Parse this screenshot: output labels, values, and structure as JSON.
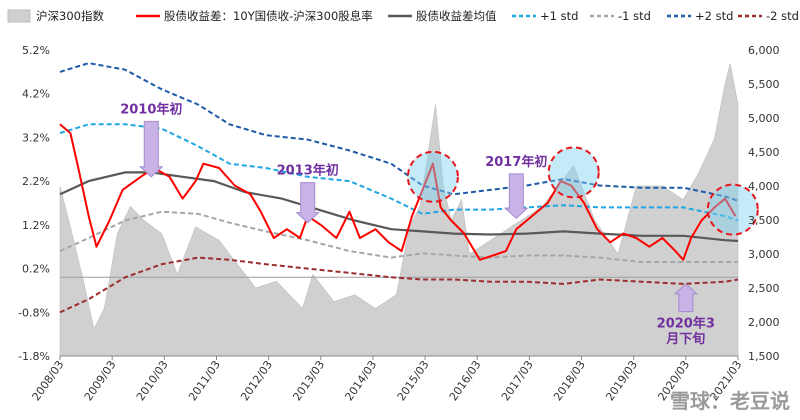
{
  "chart_data": {
    "type": "line",
    "title": "",
    "legend": [
      {
        "key": "index",
        "label": "沪深300指数",
        "color": "#d0d0d0"
      },
      {
        "key": "spread",
        "label": "股债收益差：10Y国债收-沪深300股息率",
        "color": "#ff0000"
      },
      {
        "key": "mean",
        "label": "股债收益差均值",
        "color": "#595959"
      },
      {
        "key": "p1",
        "label": "+1 std",
        "color": "#1ea7e1"
      },
      {
        "key": "m1",
        "label": "-1 std",
        "color": "#a6a6a6"
      },
      {
        "key": "p2",
        "label": "+2 std",
        "color": "#1f5aa8"
      },
      {
        "key": "m2",
        "label": "-2 std",
        "color": "#9b2d2d"
      }
    ],
    "left_axis": {
      "min": -1.8,
      "max": 5.2,
      "ticks": [
        "5.2%",
        "4.2%",
        "3.2%",
        "2.2%",
        "1.2%",
        "0.2%",
        "-0.8%",
        "-1.8%"
      ]
    },
    "right_axis": {
      "min": 1500,
      "max": 6000,
      "ticks": [
        "6,000",
        "5,500",
        "5,000",
        "4,500",
        "4,000",
        "3,500",
        "3,000",
        "2,500",
        "2,000",
        "1,500"
      ]
    },
    "x_ticks": [
      "2008/03",
      "2009/03",
      "2010/03",
      "2011/03",
      "2012/03",
      "2013/03",
      "2014/03",
      "2015/03",
      "2016/03",
      "2017/03",
      "2018/03",
      "2019/03",
      "2020/03",
      "2021/03"
    ],
    "x_range": [
      2008.25,
      2021.25
    ],
    "index_series": {
      "x": [
        2008.25,
        2008.45,
        2008.7,
        2008.9,
        2009.1,
        2009.35,
        2009.6,
        2009.85,
        2010.2,
        2010.5,
        2010.85,
        2011.3,
        2011.7,
        2012.0,
        2012.4,
        2012.9,
        2013.1,
        2013.5,
        2013.9,
        2014.3,
        2014.7,
        2014.95,
        2015.15,
        2015.45,
        2015.6,
        2015.75,
        2015.95,
        2016.1,
        2016.5,
        2017.0,
        2017.5,
        2017.9,
        2018.1,
        2018.5,
        2018.95,
        2019.3,
        2019.8,
        2020.2,
        2020.5,
        2020.8,
        2021.0,
        2021.1,
        2021.25
      ],
      "values": [
        4000,
        3400,
        2600,
        1900,
        2200,
        3300,
        3700,
        3500,
        3300,
        2700,
        3400,
        3200,
        2800,
        2500,
        2600,
        2200,
        2700,
        2300,
        2400,
        2200,
        2400,
        3400,
        3700,
        5200,
        4000,
        3500,
        3800,
        3000,
        3200,
        3450,
        3700,
        4100,
        4300,
        3500,
        3000,
        4000,
        4000,
        3800,
        4200,
        4700,
        5500,
        5800,
        5200
      ]
    },
    "spread_series": {
      "x": [
        2008.25,
        2008.45,
        2008.6,
        2008.8,
        2008.95,
        2009.2,
        2009.45,
        2009.8,
        2010.05,
        2010.35,
        2010.6,
        2010.85,
        2011.0,
        2011.3,
        2011.6,
        2011.9,
        2012.1,
        2012.35,
        2012.6,
        2012.85,
        2013.0,
        2013.25,
        2013.55,
        2013.8,
        2014.0,
        2014.3,
        2014.55,
        2014.8,
        2015.0,
        2015.2,
        2015.4,
        2015.55,
        2015.75,
        2016.0,
        2016.3,
        2016.55,
        2016.8,
        2017.0,
        2017.3,
        2017.6,
        2017.85,
        2018.05,
        2018.3,
        2018.55,
        2018.8,
        2019.05,
        2019.3,
        2019.55,
        2019.8,
        2020.05,
        2020.2,
        2020.35,
        2020.55,
        2020.8,
        2021.0,
        2021.2
      ],
      "values": [
        3.5,
        3.3,
        2.5,
        1.4,
        0.7,
        1.3,
        2.0,
        2.3,
        2.5,
        2.3,
        1.8,
        2.2,
        2.6,
        2.5,
        2.1,
        1.9,
        1.5,
        0.9,
        1.1,
        0.9,
        1.4,
        1.2,
        0.9,
        1.5,
        0.9,
        1.1,
        0.8,
        0.6,
        1.4,
        2.0,
        2.6,
        1.6,
        1.3,
        1.0,
        0.4,
        0.5,
        0.6,
        1.1,
        1.4,
        1.7,
        2.2,
        2.1,
        1.7,
        1.1,
        0.8,
        1.0,
        0.9,
        0.7,
        0.9,
        0.6,
        0.4,
        0.9,
        1.3,
        1.6,
        1.8,
        1.4
      ]
    },
    "mean_series": {
      "x": [
        2008.25,
        2008.8,
        2009.5,
        2010.0,
        2010.6,
        2011.2,
        2011.8,
        2012.5,
        2013.2,
        2013.9,
        2014.6,
        2015.2,
        2015.8,
        2016.5,
        2017.2,
        2017.9,
        2018.6,
        2019.4,
        2020.2,
        2021.0,
        2021.25
      ],
      "values": [
        1.9,
        2.2,
        2.4,
        2.4,
        2.3,
        2.2,
        1.95,
        1.8,
        1.55,
        1.3,
        1.1,
        1.05,
        1.0,
        0.98,
        1.0,
        1.05,
        1.0,
        0.95,
        0.95,
        0.85,
        0.83
      ]
    },
    "p1_series": {
      "x": [
        2008.25,
        2008.8,
        2009.5,
        2010.2,
        2010.9,
        2011.5,
        2012.2,
        2013.0,
        2013.8,
        2014.6,
        2015.2,
        2015.8,
        2016.5,
        2017.2,
        2017.9,
        2018.6,
        2019.4,
        2020.2,
        2021.0,
        2021.25
      ],
      "values": [
        3.3,
        3.5,
        3.5,
        3.4,
        3.0,
        2.6,
        2.5,
        2.3,
        2.2,
        1.8,
        1.45,
        1.55,
        1.55,
        1.6,
        1.65,
        1.6,
        1.6,
        1.6,
        1.4,
        1.3
      ]
    },
    "m1_series": {
      "x": [
        2008.25,
        2008.8,
        2009.5,
        2010.2,
        2010.9,
        2011.5,
        2012.2,
        2013.0,
        2013.8,
        2014.6,
        2015.2,
        2015.8,
        2016.5,
        2017.2,
        2017.9,
        2018.6,
        2019.4,
        2020.2,
        2021.0,
        2021.25
      ],
      "values": [
        0.6,
        0.9,
        1.3,
        1.5,
        1.45,
        1.25,
        1.05,
        0.85,
        0.6,
        0.45,
        0.55,
        0.5,
        0.45,
        0.5,
        0.5,
        0.45,
        0.35,
        0.35,
        0.35,
        0.35
      ]
    },
    "p2_series": {
      "x": [
        2008.25,
        2008.8,
        2009.5,
        2010.2,
        2010.9,
        2011.5,
        2012.2,
        2013.0,
        2013.8,
        2014.6,
        2015.2,
        2015.8,
        2016.5,
        2017.2,
        2017.9,
        2018.6,
        2019.4,
        2020.2,
        2021.0,
        2021.25
      ],
      "values": [
        4.7,
        4.9,
        4.75,
        4.3,
        3.95,
        3.5,
        3.25,
        3.15,
        2.9,
        2.6,
        2.1,
        1.9,
        2.0,
        2.1,
        2.25,
        2.1,
        2.05,
        2.05,
        1.85,
        1.75
      ]
    },
    "m2_series": {
      "x": [
        2008.25,
        2008.8,
        2009.5,
        2010.2,
        2010.9,
        2011.5,
        2012.2,
        2013.0,
        2013.8,
        2014.6,
        2015.2,
        2015.8,
        2016.5,
        2017.2,
        2017.9,
        2018.6,
        2019.4,
        2020.2,
        2021.0,
        2021.25
      ],
      "values": [
        -0.8,
        -0.5,
        0.0,
        0.3,
        0.45,
        0.4,
        0.3,
        0.2,
        0.1,
        0.0,
        -0.05,
        -0.05,
        -0.1,
        -0.1,
        -0.15,
        -0.05,
        -0.1,
        -0.15,
        -0.1,
        -0.05
      ]
    },
    "annotations": [
      {
        "text": "2010年初",
        "x": 2010.0,
        "y": 3.75,
        "arrow_to": 2.3,
        "arrow_dir": "down"
      },
      {
        "text": "2013年初",
        "x": 2013.0,
        "y": 2.35,
        "arrow_to": 1.25,
        "arrow_dir": "down"
      },
      {
        "text": "2017年初",
        "x": 2017.0,
        "y": 2.55,
        "arrow_to": 1.35,
        "arrow_dir": "down"
      },
      {
        "text": "2020年3",
        "x": 2020.25,
        "y": -1.15,
        "arrow_to": -0.15,
        "arrow_dir": "up"
      },
      {
        "text": "月下旬",
        "x": 2020.25,
        "y": -1.5
      }
    ],
    "highlight_circles": [
      {
        "x": 2015.4,
        "y": 2.3,
        "dashed": true
      },
      {
        "x": 2018.1,
        "y": 2.4,
        "dashed": true
      },
      {
        "x": 2021.15,
        "y": 1.55,
        "dashed": true
      }
    ]
  },
  "watermark": "雪球：老豆说"
}
